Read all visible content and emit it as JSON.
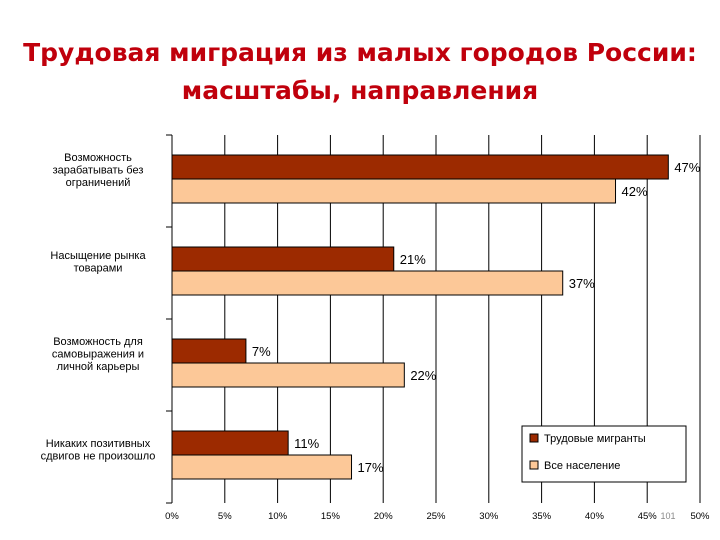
{
  "slide": {
    "title_line1": "Трудовая миграция из малых городов России:",
    "title_line2": "масштабы, направления",
    "page_number": "101"
  },
  "colors": {
    "title": "#c0000c",
    "series_migrants": "#9c2a00",
    "series_population": "#fcc898"
  },
  "chart_data": {
    "type": "bar",
    "orientation": "horizontal",
    "categories": [
      [
        "Возможность",
        "зарабатывать без",
        "ограничений"
      ],
      [
        "Насыщение рынка",
        "товарами"
      ],
      [
        "Возможность для",
        "самовыражения и",
        "личной карьеры"
      ],
      [
        "Никаких позитивных",
        "сдвигов не произошло"
      ]
    ],
    "series": [
      {
        "name": "Трудовые мигранты",
        "values": [
          47,
          21,
          7,
          11
        ],
        "labels": [
          "47%",
          "21%",
          "7%",
          "11%"
        ]
      },
      {
        "name": "Все население",
        "values": [
          42,
          37,
          22,
          17
        ],
        "labels": [
          "42%",
          "37%",
          "22%",
          "17%"
        ]
      }
    ],
    "xlim": [
      0,
      50
    ],
    "ticks": [
      "0%",
      "5%",
      "10%",
      "15%",
      "20%",
      "25%",
      "30%",
      "35%",
      "40%",
      "45%",
      "50%"
    ],
    "grid": true,
    "legend_position": "bottom-right"
  }
}
